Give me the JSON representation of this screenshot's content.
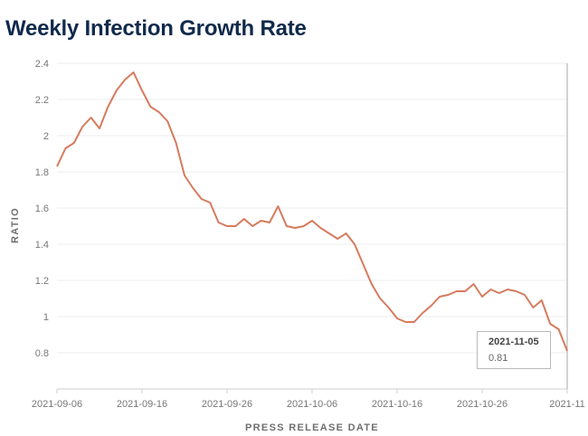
{
  "chart_data": {
    "type": "line",
    "title": "Weekly Infection Growth Rate",
    "xlabel": "PRESS RELEASE DATE",
    "ylabel": "RATIO",
    "ylim": [
      0.6,
      2.4
    ],
    "yticks": [
      "0.8",
      "1",
      "1.2",
      "1.4",
      "1.6",
      "1.8",
      "2",
      "2.2",
      "2.4"
    ],
    "xticks": [
      "2021-09-06",
      "2021-09-16",
      "2021-09-26",
      "2021-10-06",
      "2021-10-16",
      "2021-10-26",
      "2021-11"
    ],
    "x_start": "2021-09-06",
    "x_range_days": [
      0,
      60
    ],
    "series": [
      {
        "name": "Ratio",
        "color": "#d67b5e",
        "values": [
          1.83,
          1.93,
          1.96,
          2.05,
          2.1,
          2.04,
          2.16,
          2.25,
          2.31,
          2.35,
          2.25,
          2.16,
          2.13,
          2.08,
          1.96,
          1.78,
          1.71,
          1.65,
          1.63,
          1.52,
          1.5,
          1.5,
          1.54,
          1.5,
          1.53,
          1.52,
          1.61,
          1.5,
          1.49,
          1.5,
          1.53,
          1.49,
          1.46,
          1.43,
          1.46,
          1.4,
          1.29,
          1.18,
          1.1,
          1.05,
          0.99,
          0.97,
          0.97,
          1.02,
          1.06,
          1.11,
          1.12,
          1.14,
          1.14,
          1.18,
          1.11,
          1.15,
          1.13,
          1.15,
          1.14,
          1.12,
          1.05,
          1.09,
          0.96,
          0.93,
          0.81
        ]
      }
    ],
    "grid": true,
    "tooltip": {
      "date": "2021-11-05",
      "value": "0.81"
    }
  }
}
